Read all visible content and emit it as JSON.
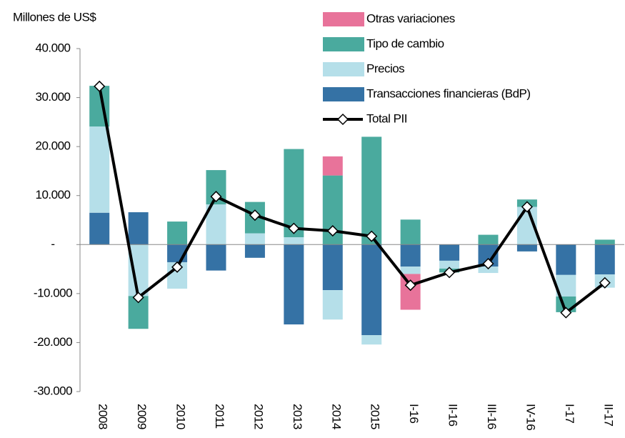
{
  "chart_data": {
    "type": "bar",
    "y_label": "Millones de US$",
    "categories": [
      "2008",
      "2009",
      "2010",
      "2011",
      "2012",
      "2013",
      "2014",
      "2015",
      "I-16",
      "II-16",
      "III-16",
      "IV-16",
      "I-17",
      "II-17"
    ],
    "series": [
      {
        "name": "Transacciones financieras (BdP)",
        "color": "#3572a5",
        "values": [
          6500,
          6600,
          -3600,
          -5300,
          -2700,
          -16300,
          -9300,
          -18500,
          -4500,
          -3300,
          -4500,
          -1400,
          -6200,
          -6100
        ]
      },
      {
        "name": "Precios",
        "color": "#b5dfe9",
        "values": [
          17600,
          -10500,
          -5400,
          8200,
          2300,
          1500,
          -6000,
          -1900,
          -1500,
          -1600,
          -1300,
          7700,
          -4400,
          -2700
        ]
      },
      {
        "name": "Tipo de cambio",
        "color": "#4aaa9e",
        "values": [
          8300,
          -6700,
          4700,
          7000,
          6400,
          18000,
          14100,
          22000,
          5100,
          -800,
          2000,
          1500,
          -3200,
          1000
        ]
      },
      {
        "name": "Otras variaciones",
        "color": "#e8739a",
        "values": [
          0,
          0,
          0,
          0,
          0,
          0,
          3900,
          0,
          -7300,
          0,
          0,
          0,
          0,
          0
        ]
      },
      {
        "name": "Total PII",
        "color": "#000000",
        "type": "line",
        "values": [
          32300,
          -10800,
          -4600,
          9800,
          6000,
          3300,
          2800,
          1700,
          -8300,
          -5700,
          -3900,
          7700,
          -13900,
          -7800
        ]
      }
    ],
    "ylim": [
      -30000,
      40000
    ],
    "yticks": [
      {
        "value": -30000,
        "label": "-30.000"
      },
      {
        "value": -20000,
        "label": "-20.000"
      },
      {
        "value": -10000,
        "label": "-10.000"
      },
      {
        "value": 0,
        "label": "-"
      },
      {
        "value": 10000,
        "label": "10.000"
      },
      {
        "value": 20000,
        "label": "20.000"
      },
      {
        "value": 30000,
        "label": "30.000"
      },
      {
        "value": 40000,
        "label": "40.000"
      }
    ]
  }
}
